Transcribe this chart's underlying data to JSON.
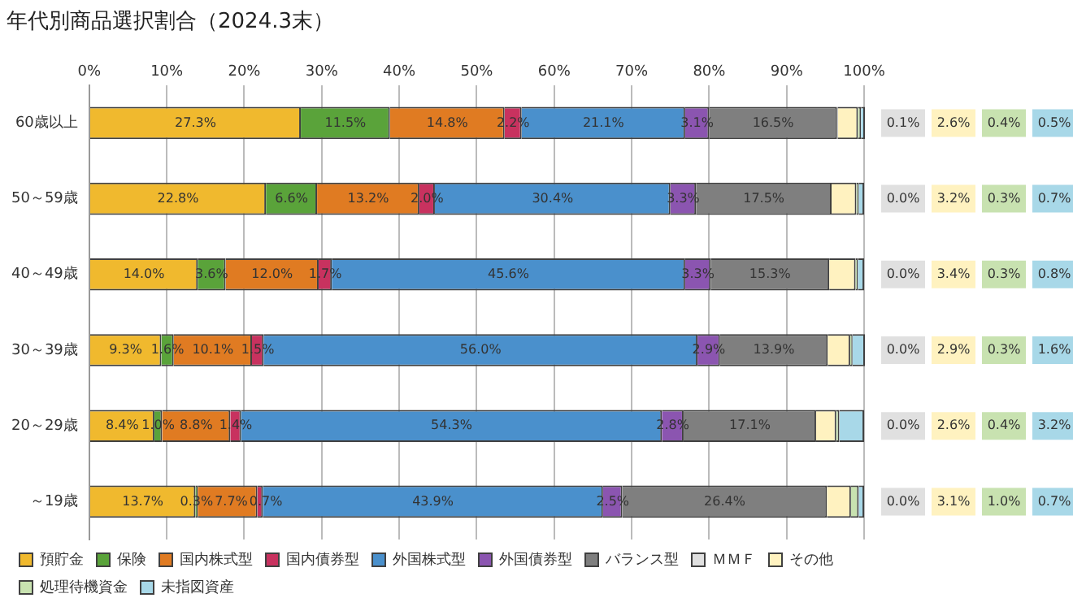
{
  "chart_data": {
    "type": "bar",
    "orientation": "horizontal",
    "stacked": true,
    "title": "年代別商品選択割合（2024.3末）",
    "categories": [
      "60歳以上",
      "50～59歳",
      "40～49歳",
      "30～39歳",
      "20～29歳",
      "～19歳"
    ],
    "series": [
      {
        "name": "預貯金",
        "color": "#f0b92e",
        "values": [
          27.3,
          22.8,
          14.0,
          9.3,
          8.4,
          13.7
        ],
        "value_labels": [
          "27.3%",
          "22.8%",
          "14.0%",
          "9.3%",
          "8.4%",
          "13.7%"
        ]
      },
      {
        "name": "保険",
        "color": "#5aa33a",
        "values": [
          11.5,
          6.6,
          3.6,
          1.6,
          1.0,
          0.3
        ],
        "value_labels": [
          "11.5%",
          "6.6%",
          "3.6%",
          "1.6%",
          "1.0%",
          "0.3%"
        ]
      },
      {
        "name": "国内株式型",
        "color": "#e07b22",
        "values": [
          14.8,
          13.2,
          12.0,
          10.1,
          8.8,
          7.7
        ],
        "value_labels": [
          "14.8%",
          "13.2%",
          "12.0%",
          "10.1%",
          "8.8%",
          "7.7%"
        ]
      },
      {
        "name": "国内債券型",
        "color": "#c8325f",
        "values": [
          2.2,
          2.0,
          1.7,
          1.5,
          1.4,
          0.7
        ],
        "value_labels": [
          "2.2%",
          "2.0%",
          "1.7%",
          "1.5%",
          "1.4%",
          "0.7%"
        ]
      },
      {
        "name": "外国株式型",
        "color": "#4a90cc",
        "values": [
          21.1,
          30.4,
          45.6,
          56.0,
          54.3,
          43.9
        ],
        "value_labels": [
          "21.1%",
          "30.4%",
          "45.6%",
          "56.0%",
          "54.3%",
          "43.9%"
        ]
      },
      {
        "name": "外国債券型",
        "color": "#8b55b0",
        "values": [
          3.1,
          3.3,
          3.3,
          2.9,
          2.8,
          2.5
        ],
        "value_labels": [
          "3.1%",
          "3.3%",
          "3.3%",
          "2.9%",
          "2.8%",
          "2.5%"
        ]
      },
      {
        "name": "バランス型",
        "color": "#7f7f7f",
        "values": [
          16.5,
          17.5,
          15.3,
          13.9,
          17.1,
          26.4
        ],
        "value_labels": [
          "16.5%",
          "17.5%",
          "15.3%",
          "13.9%",
          "17.1%",
          "26.4%"
        ]
      },
      {
        "name": "ＭＭＦ",
        "color": "#e0e0e0",
        "values": [
          0.1,
          0.0,
          0.0,
          0.0,
          0.0,
          0.0
        ],
        "value_labels": [
          "0.1%",
          "0.0%",
          "0.0%",
          "0.0%",
          "0.0%",
          "0.0%"
        ]
      },
      {
        "name": "その他",
        "color": "#fff2c0",
        "values": [
          2.6,
          3.2,
          3.4,
          2.9,
          2.6,
          3.1
        ],
        "value_labels": [
          "2.6%",
          "3.2%",
          "3.4%",
          "2.9%",
          "2.6%",
          "3.1%"
        ]
      },
      {
        "name": "処理待機資金",
        "color": "#c8e2b0",
        "values": [
          0.4,
          0.3,
          0.3,
          0.3,
          0.4,
          1.0
        ],
        "value_labels": [
          "0.4%",
          "0.3%",
          "0.3%",
          "0.3%",
          "0.4%",
          "1.0%"
        ]
      },
      {
        "name": "未指図資産",
        "color": "#a8d8e8",
        "values": [
          0.5,
          0.7,
          0.8,
          1.6,
          3.2,
          0.7
        ],
        "value_labels": [
          "0.5%",
          "0.7%",
          "0.8%",
          "1.6%",
          "3.2%",
          "0.7%"
        ]
      }
    ],
    "xlim": [
      0,
      100.1
    ],
    "xticks": [
      {
        "value": 0,
        "label": "0%"
      },
      {
        "value": 10,
        "label": "10%"
      },
      {
        "value": 20,
        "label": "20%"
      },
      {
        "value": 30,
        "label": "30%"
      },
      {
        "value": 40,
        "label": "40%"
      },
      {
        "value": 50,
        "label": "50%"
      },
      {
        "value": 60,
        "label": "60%"
      },
      {
        "value": 70,
        "label": "70%"
      },
      {
        "value": 80,
        "label": "80%"
      },
      {
        "value": 90,
        "label": "90%"
      },
      {
        "value": 100,
        "label": "100%"
      }
    ],
    "grid": "x",
    "legend": "bottom"
  }
}
